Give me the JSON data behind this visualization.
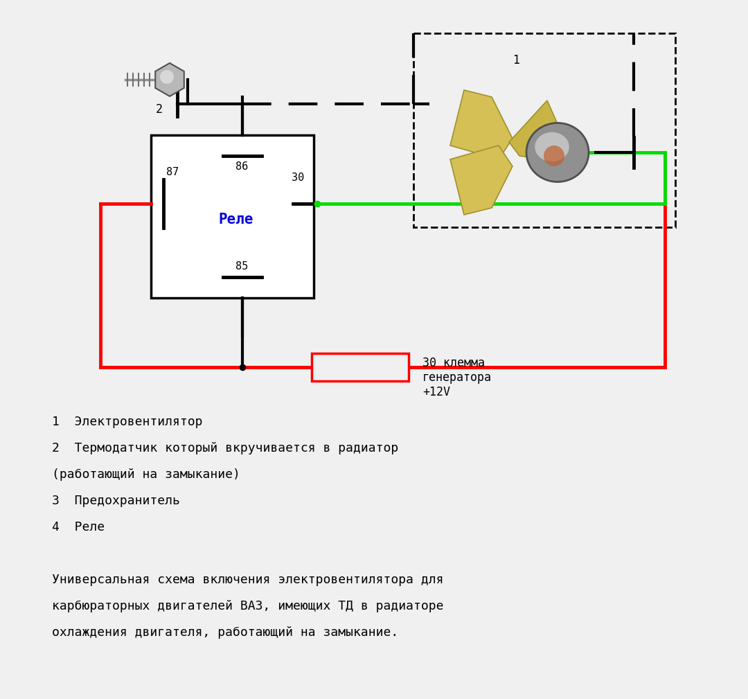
{
  "bg_color": "#f0f0f0",
  "relay_label": "Реле",
  "relay_label_color": "#0000dd",
  "note_line1": "1  Электровентилятор",
  "note_line2": "2  Термодатчик который вкручивается в радиатор",
  "note_line3": "(работающий на замыкание)",
  "note_line4": "3  Предохранитель",
  "note_line5": "4  Реле",
  "desc_line1": "Универсальная схема включения электровентилятора для",
  "desc_line2": "карбюраторных двигателей ВАЗ, имеющих ТД в радиаторе",
  "desc_line3": "охлаждения двигателя, работающий на замыкание.",
  "label_30_text": "30 клемма\nгенератора\n+12V",
  "red_color": "#ff0000",
  "green_color": "#00dd00",
  "black_color": "#000000",
  "white_color": "#ffffff"
}
